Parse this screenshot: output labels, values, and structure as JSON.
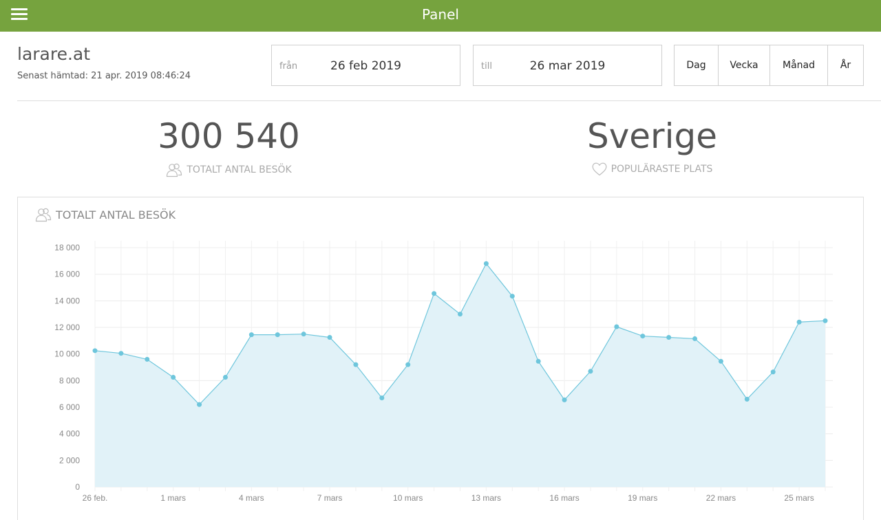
{
  "header": {
    "title": "Panel"
  },
  "icons": {
    "menu": "hamburger-menu-icon",
    "visitors": "users-icon",
    "place": "heart-icon"
  },
  "colors": {
    "brand": "#76a33e",
    "line": "#6ec6dc",
    "area": "#e1f2f8"
  },
  "site": {
    "name": "larare.at",
    "last_fetched": "Senast hämtad: 21 apr. 2019 08:46:24"
  },
  "date_range": {
    "from_label": "från",
    "from_value": "26 feb 2019",
    "to_label": "till",
    "to_value": "26 mar 2019"
  },
  "periods": [
    "Dag",
    "Vecka",
    "Månad",
    "År"
  ],
  "stats": {
    "total_visits_value": "300 540",
    "total_visits_label": "TOTALT ANTAL BESÖK",
    "popular_place_value": "Sverige",
    "popular_place_label": "POPULÄRASTE PLATS"
  },
  "chart_title": "TOTALT ANTAL BESÖK",
  "chart_data": {
    "type": "area",
    "title": "TOTALT ANTAL BESÖK",
    "xlabel": "",
    "ylabel": "",
    "ylim": [
      0,
      18000
    ],
    "yticks": [
      "0",
      "2 000",
      "4 000",
      "6 000",
      "8 000",
      "10 000",
      "12 000",
      "14 000",
      "16 000",
      "18 000"
    ],
    "xtick_labels": [
      "26 feb.",
      "1 mars",
      "4 mars",
      "7 mars",
      "10 mars",
      "13 mars",
      "16 mars",
      "19 mars",
      "22 mars",
      "25 mars"
    ],
    "xtick_indices": [
      0,
      3,
      6,
      9,
      12,
      15,
      18,
      21,
      24,
      27
    ],
    "grid": true,
    "x": [
      "26 feb.",
      "27 feb.",
      "28 feb.",
      "1 mars",
      "2 mars",
      "3 mars",
      "4 mars",
      "5 mars",
      "6 mars",
      "7 mars",
      "8 mars",
      "9 mars",
      "10 mars",
      "11 mars",
      "12 mars",
      "13 mars",
      "14 mars",
      "15 mars",
      "16 mars",
      "17 mars",
      "18 mars",
      "19 mars",
      "20 mars",
      "21 mars",
      "22 mars",
      "23 mars",
      "24 mars",
      "25 mars",
      "26 mars"
    ],
    "values": [
      10250,
      10050,
      9600,
      8250,
      6200,
      8250,
      11450,
      11450,
      11500,
      11250,
      9200,
      6700,
      9200,
      14550,
      13000,
      16800,
      14350,
      9450,
      6550,
      8700,
      12050,
      11350,
      11250,
      11150,
      9450,
      6600,
      8650,
      12400,
      12500
    ]
  }
}
